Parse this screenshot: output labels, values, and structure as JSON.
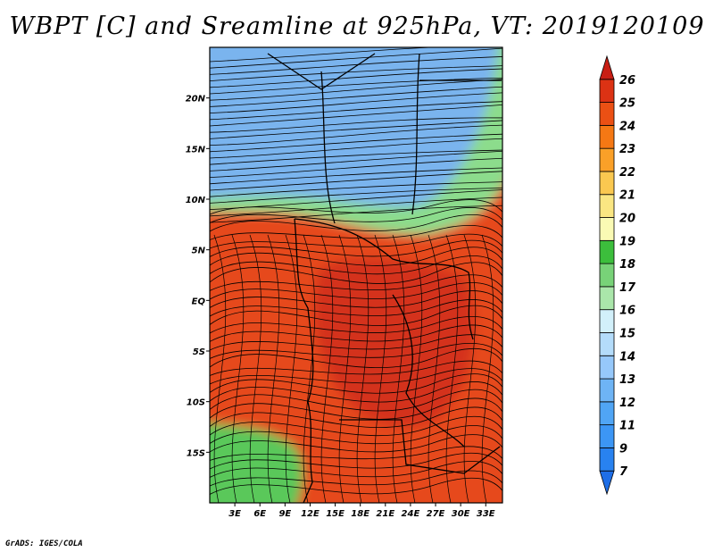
{
  "title": "WBPT [C] and Sreamline at 925hPa, VT: 2019120109",
  "credit": "GrADS: IGES/COLA",
  "map": {
    "lon_range": [
      0,
      35
    ],
    "lat_range": [
      -20,
      25
    ],
    "lon_ticks": [
      {
        "v": 3,
        "label": "3E"
      },
      {
        "v": 6,
        "label": "6E"
      },
      {
        "v": 9,
        "label": "9E"
      },
      {
        "v": 12,
        "label": "12E"
      },
      {
        "v": 15,
        "label": "15E"
      },
      {
        "v": 18,
        "label": "18E"
      },
      {
        "v": 21,
        "label": "21E"
      },
      {
        "v": 24,
        "label": "24E"
      },
      {
        "v": 27,
        "label": "27E"
      },
      {
        "v": 30,
        "label": "30E"
      },
      {
        "v": 33,
        "label": "33E"
      }
    ],
    "lat_ticks": [
      {
        "v": 20,
        "label": "20N"
      },
      {
        "v": 15,
        "label": "15N"
      },
      {
        "v": 10,
        "label": "10N"
      },
      {
        "v": 5,
        "label": "5N"
      },
      {
        "v": 0,
        "label": "EQ"
      },
      {
        "v": -5,
        "label": "5S"
      },
      {
        "v": -10,
        "label": "10S"
      },
      {
        "v": -15,
        "label": "15S"
      }
    ]
  },
  "colorbar": {
    "labels": [
      "7",
      "9",
      "11",
      "12",
      "13",
      "14",
      "15",
      "16",
      "17",
      "18",
      "19",
      "20",
      "21",
      "22",
      "23",
      "24",
      "25",
      "26"
    ],
    "colors": [
      "#1e6ee6",
      "#2882f0",
      "#3c96f5",
      "#50a5f5",
      "#6eb4f5",
      "#96c8fa",
      "#b4dcfa",
      "#d2f0fa",
      "#aae6aa",
      "#78d278",
      "#3cbe3c",
      "#fafab4",
      "#fae682",
      "#fac850",
      "#faa028",
      "#f57814",
      "#eb5014",
      "#dc3214",
      "#c81e14"
    ]
  },
  "fields": {
    "zones": [
      {
        "name": "north-dry",
        "color": "#7ab4ee"
      },
      {
        "name": "transition",
        "color": "#8cdc8c"
      },
      {
        "name": "humid-tropics",
        "color": "#e64a1e"
      },
      {
        "name": "core",
        "color": "#d4321a"
      },
      {
        "name": "south-west",
        "color": "#5ac85a"
      }
    ]
  }
}
